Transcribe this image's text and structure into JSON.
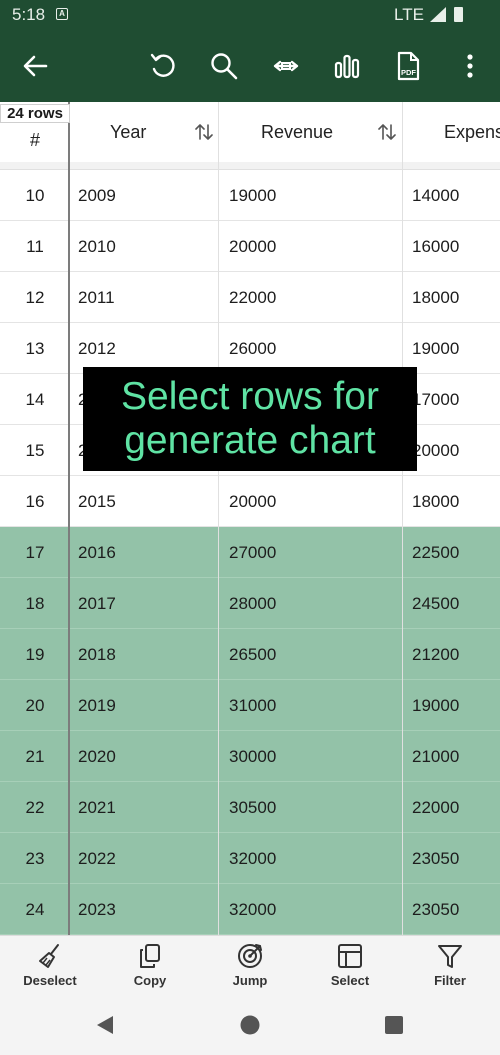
{
  "status": {
    "time": "5:18",
    "network": "LTE"
  },
  "toolbar": {
    "icons": [
      "back-arrow-icon",
      "undo-icon",
      "search-icon",
      "fit-width-icon",
      "chart-icon",
      "pdf-icon",
      "more-vert-icon"
    ],
    "pdf_label": "PDF"
  },
  "table": {
    "row_count_badge": "24 rows",
    "columns": [
      "#",
      "Year",
      "Revenue",
      "Expens"
    ],
    "rows": [
      {
        "num": "10",
        "year": "2009",
        "revenue": "19000",
        "expense": "14000",
        "selected": false
      },
      {
        "num": "11",
        "year": "2010",
        "revenue": "20000",
        "expense": "16000",
        "selected": false
      },
      {
        "num": "12",
        "year": "2011",
        "revenue": "22000",
        "expense": "18000",
        "selected": false
      },
      {
        "num": "13",
        "year": "2012",
        "revenue": "26000",
        "expense": "19000",
        "selected": false
      },
      {
        "num": "14",
        "year": "2",
        "revenue": "",
        "expense": "17000",
        "selected": false
      },
      {
        "num": "15",
        "year": "2",
        "revenue": "",
        "expense": "20000",
        "selected": false
      },
      {
        "num": "16",
        "year": "2015",
        "revenue": "20000",
        "expense": "18000",
        "selected": false
      },
      {
        "num": "17",
        "year": "2016",
        "revenue": "27000",
        "expense": "22500",
        "selected": true
      },
      {
        "num": "18",
        "year": "2017",
        "revenue": "28000",
        "expense": "24500",
        "selected": true
      },
      {
        "num": "19",
        "year": "2018",
        "revenue": "26500",
        "expense": "21200",
        "selected": true
      },
      {
        "num": "20",
        "year": "2019",
        "revenue": "31000",
        "expense": "19000",
        "selected": true
      },
      {
        "num": "21",
        "year": "2020",
        "revenue": "30000",
        "expense": "21000",
        "selected": true
      },
      {
        "num": "22",
        "year": "2021",
        "revenue": "30500",
        "expense": "22000",
        "selected": true
      },
      {
        "num": "23",
        "year": "2022",
        "revenue": "32000",
        "expense": "23050",
        "selected": true
      },
      {
        "num": "24",
        "year": "2023",
        "revenue": "32000",
        "expense": "23050",
        "selected": true
      }
    ]
  },
  "overlay": {
    "line1": "Select rows for",
    "line2": "generate chart"
  },
  "bottom_bar": {
    "deselect": "Deselect",
    "copy": "Copy",
    "jump": "Jump",
    "select": "Select",
    "filter": "Filter"
  },
  "colors": {
    "toolbar": "#1f4d32",
    "selected_row": "#93c2a8",
    "overlay_text": "#5fe3a4"
  }
}
